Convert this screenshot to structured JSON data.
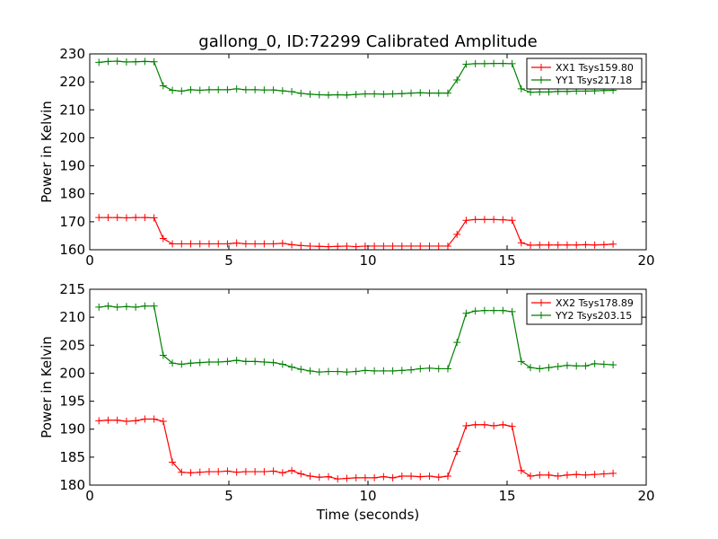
{
  "figure": {
    "title": "gallong_0, ID:72299 Calibrated Amplitude",
    "xlabel": "Time (seconds)"
  },
  "chart_data": [
    {
      "type": "line",
      "title": "gallong_0, ID:72299 Calibrated Amplitude",
      "xlabel": "",
      "ylabel": "Power in Kelvin",
      "xlim": [
        0,
        20
      ],
      "ylim": [
        160,
        230
      ],
      "xticks": [
        "0",
        "5",
        "10",
        "15",
        "20"
      ],
      "yticks": [
        "160",
        "170",
        "180",
        "190",
        "200",
        "210",
        "220",
        "230"
      ],
      "legend_position": "top-right",
      "grid": false,
      "x": [
        0.33,
        0.66,
        0.99,
        1.32,
        1.65,
        1.98,
        2.31,
        2.64,
        2.97,
        3.3,
        3.63,
        3.96,
        4.29,
        4.62,
        4.95,
        5.28,
        5.61,
        5.94,
        6.27,
        6.6,
        6.93,
        7.26,
        7.59,
        7.92,
        8.25,
        8.58,
        8.91,
        9.24,
        9.57,
        9.9,
        10.23,
        10.56,
        10.89,
        11.22,
        11.55,
        11.88,
        12.21,
        12.54,
        12.87,
        13.2,
        13.53,
        13.86,
        14.19,
        14.52,
        14.85,
        15.18,
        15.51,
        15.84,
        16.17,
        16.5,
        16.83,
        17.16,
        17.49,
        17.82,
        18.15,
        18.48,
        18.81
      ],
      "series": [
        {
          "name": "XX1 Tsys159.80",
          "color": "#ff0000",
          "values": [
            171.5,
            171.5,
            171.5,
            171.4,
            171.5,
            171.5,
            171.4,
            164.0,
            162.1,
            162.1,
            162.1,
            162.1,
            162.1,
            162.1,
            162.1,
            162.4,
            162.1,
            162.1,
            162.1,
            162.1,
            162.3,
            161.8,
            161.5,
            161.3,
            161.2,
            161.1,
            161.2,
            161.3,
            161.1,
            161.3,
            161.3,
            161.3,
            161.3,
            161.3,
            161.3,
            161.3,
            161.3,
            161.3,
            161.3,
            165.5,
            170.5,
            170.8,
            170.8,
            170.8,
            170.7,
            170.5,
            162.5,
            161.6,
            161.7,
            161.7,
            161.7,
            161.7,
            161.7,
            161.8,
            161.7,
            161.8,
            162.0
          ]
        },
        {
          "name": "YY1 Tsys217.18",
          "color": "#008000",
          "values": [
            227.0,
            227.3,
            227.4,
            227.1,
            227.2,
            227.3,
            227.2,
            218.6,
            217.0,
            216.7,
            217.2,
            217.0,
            217.2,
            217.2,
            217.2,
            217.5,
            217.2,
            217.2,
            217.1,
            217.1,
            216.8,
            216.5,
            215.9,
            215.6,
            215.4,
            215.3,
            215.4,
            215.3,
            215.5,
            215.7,
            215.7,
            215.6,
            215.7,
            215.8,
            216.0,
            216.1,
            216.0,
            216.0,
            216.0,
            220.7,
            226.3,
            226.5,
            226.5,
            226.6,
            226.6,
            226.5,
            217.5,
            216.3,
            216.4,
            216.4,
            216.6,
            216.6,
            216.7,
            216.7,
            216.8,
            216.9,
            217.0
          ]
        }
      ]
    },
    {
      "type": "line",
      "title": "",
      "xlabel": "Time (seconds)",
      "ylabel": "Power in Kelvin",
      "xlim": [
        0,
        20
      ],
      "ylim": [
        180,
        215
      ],
      "xticks": [
        "0",
        "5",
        "10",
        "15",
        "20"
      ],
      "yticks": [
        "180",
        "185",
        "190",
        "195",
        "200",
        "205",
        "210",
        "215"
      ],
      "legend_position": "top-right",
      "grid": false,
      "x": [
        0.33,
        0.66,
        0.99,
        1.32,
        1.65,
        1.98,
        2.31,
        2.64,
        2.97,
        3.3,
        3.63,
        3.96,
        4.29,
        4.62,
        4.95,
        5.28,
        5.61,
        5.94,
        6.27,
        6.6,
        6.93,
        7.26,
        7.59,
        7.92,
        8.25,
        8.58,
        8.91,
        9.24,
        9.57,
        9.9,
        10.23,
        10.56,
        10.89,
        11.22,
        11.55,
        11.88,
        12.21,
        12.54,
        12.87,
        13.2,
        13.53,
        13.86,
        14.19,
        14.52,
        14.85,
        15.18,
        15.51,
        15.84,
        16.17,
        16.5,
        16.83,
        17.16,
        17.49,
        17.82,
        18.15,
        18.48,
        18.81
      ],
      "series": [
        {
          "name": "XX2 Tsys178.89",
          "color": "#ff0000",
          "values": [
            191.5,
            191.6,
            191.6,
            191.4,
            191.5,
            191.8,
            191.8,
            191.4,
            184.1,
            182.3,
            182.2,
            182.3,
            182.4,
            182.4,
            182.5,
            182.3,
            182.4,
            182.4,
            182.4,
            182.5,
            182.2,
            182.6,
            182.0,
            181.6,
            181.4,
            181.5,
            181.1,
            181.2,
            181.3,
            181.3,
            181.3,
            181.5,
            181.3,
            181.6,
            181.6,
            181.5,
            181.6,
            181.4,
            181.6,
            186.0,
            190.6,
            190.8,
            190.8,
            190.6,
            190.8,
            190.5,
            182.6,
            181.6,
            181.8,
            181.8,
            181.6,
            181.8,
            181.9,
            181.8,
            181.9,
            182.0,
            182.1
          ]
        },
        {
          "name": "YY2 Tsys203.15",
          "color": "#008000",
          "values": [
            211.8,
            212.0,
            211.8,
            211.9,
            211.8,
            212.0,
            212.0,
            203.2,
            201.8,
            201.6,
            201.8,
            201.9,
            202.0,
            202.0,
            202.1,
            202.3,
            202.1,
            202.1,
            202.0,
            201.9,
            201.6,
            201.1,
            200.7,
            200.4,
            200.2,
            200.3,
            200.3,
            200.2,
            200.3,
            200.5,
            200.4,
            200.4,
            200.4,
            200.5,
            200.6,
            200.8,
            200.9,
            200.8,
            200.8,
            205.5,
            210.7,
            211.1,
            211.2,
            211.2,
            211.2,
            211.0,
            202.1,
            201.0,
            200.8,
            201.0,
            201.2,
            201.4,
            201.3,
            201.3,
            201.7,
            201.6,
            201.5
          ]
        }
      ]
    }
  ]
}
